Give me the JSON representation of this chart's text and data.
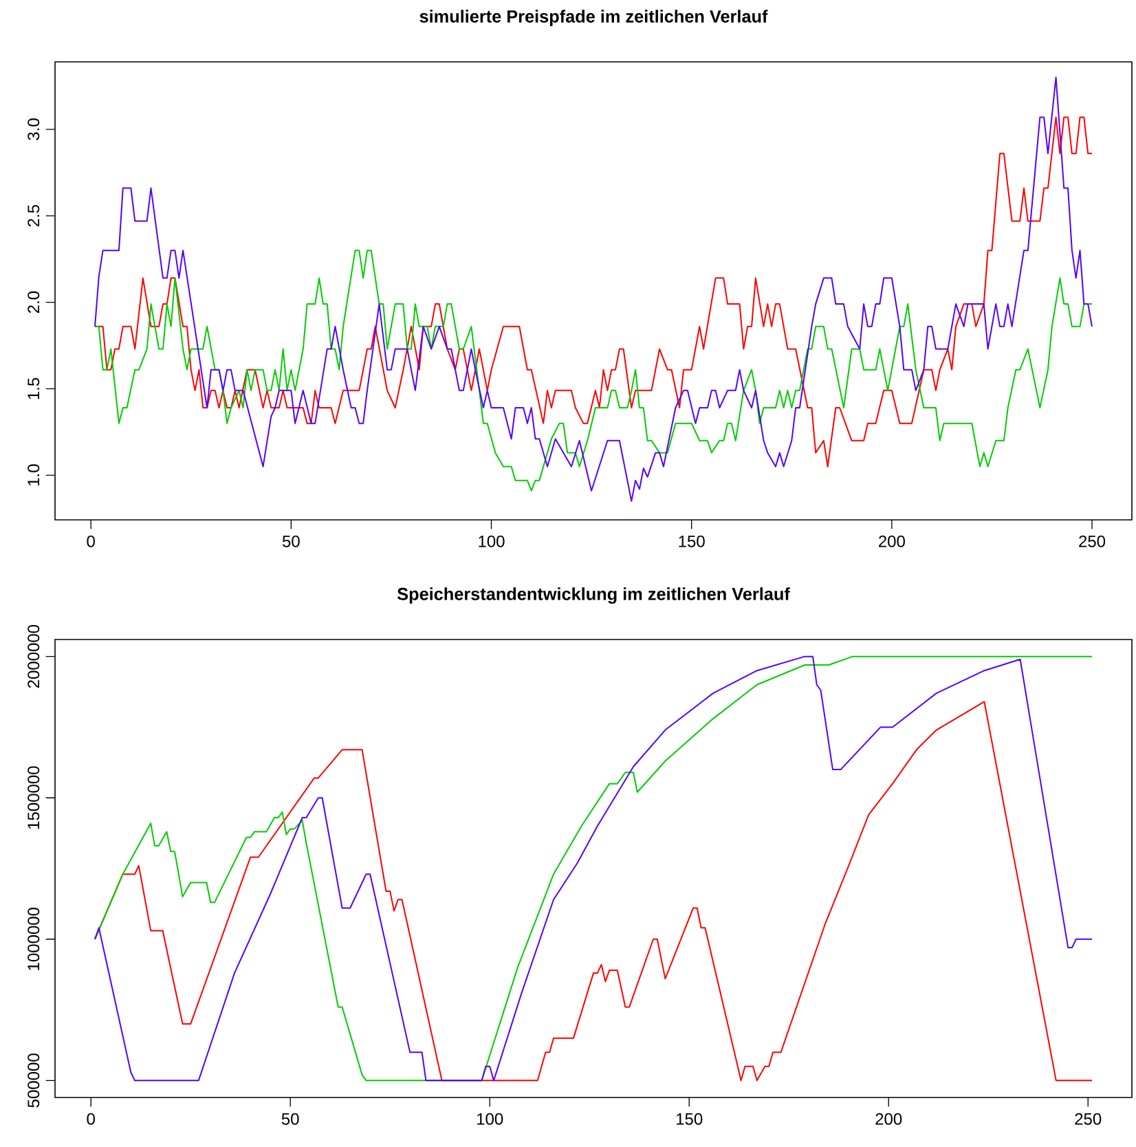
{
  "chart_data": [
    {
      "type": "line",
      "title": "simulierte Preispfade im zeitlichen Verlauf",
      "xlim": [
        -8.96,
        259.96
      ],
      "ylim": [
        0.742,
        3.39
      ],
      "xticks": [
        0,
        50,
        100,
        150,
        200,
        250
      ],
      "yticks": [
        {
          "value": 1,
          "label": "1.0"
        },
        {
          "value": 1.5,
          "label": "1.5"
        },
        {
          "value": 2,
          "label": "2.0"
        },
        {
          "value": 2.5,
          "label": "2.5"
        },
        {
          "value": 3,
          "label": "3.0"
        }
      ],
      "series": [
        {
          "color": "#ff0000",
          "x": [
            1,
            3,
            4,
            5,
            6,
            7,
            8,
            10,
            11,
            13,
            15,
            17,
            18,
            19,
            20,
            21,
            23,
            24,
            25,
            26,
            27,
            28,
            29,
            30,
            31,
            32,
            33,
            34,
            35,
            36,
            37,
            39,
            41,
            43,
            44,
            45,
            47,
            48,
            49,
            53,
            54,
            55,
            56,
            57,
            60,
            61,
            63,
            67,
            69,
            70,
            71,
            74,
            76,
            78,
            80,
            82,
            83,
            85,
            86,
            87,
            89,
            91,
            92,
            93,
            94,
            95,
            97,
            99,
            100,
            103,
            107,
            109,
            110,
            113,
            114,
            115,
            116,
            120,
            121,
            123,
            124,
            126,
            127,
            128,
            129,
            130,
            131,
            132,
            133,
            135,
            136,
            140,
            142,
            144,
            145,
            147,
            148,
            150,
            152,
            153,
            156,
            158,
            159,
            162,
            163,
            164,
            165,
            166,
            168,
            169,
            170,
            171,
            172,
            174,
            176,
            179,
            180,
            181,
            183,
            184,
            186,
            187,
            190,
            193,
            194,
            196,
            198,
            200,
            202,
            205,
            208,
            210,
            211,
            212,
            214,
            215,
            216,
            218,
            220,
            221,
            223,
            224,
            225,
            227,
            228,
            230,
            232,
            233,
            234,
            237,
            238,
            239,
            241,
            242,
            243,
            244,
            245,
            246,
            247,
            248,
            249,
            250
          ],
          "values": [
            1.86,
            1.86,
            1.61,
            1.61,
            1.73,
            1.73,
            1.86,
            1.86,
            1.73,
            2.14,
            1.86,
            1.86,
            1.99,
            1.99,
            2.14,
            2.14,
            1.86,
            1.86,
            1.61,
            1.49,
            1.61,
            1.39,
            1.39,
            1.49,
            1.49,
            1.39,
            1.49,
            1.39,
            1.39,
            1.49,
            1.39,
            1.61,
            1.61,
            1.39,
            1.49,
            1.39,
            1.39,
            1.49,
            1.39,
            1.39,
            1.3,
            1.3,
            1.49,
            1.39,
            1.39,
            1.3,
            1.49,
            1.49,
            1.73,
            1.73,
            1.86,
            1.49,
            1.39,
            1.61,
            1.86,
            1.61,
            1.86,
            1.86,
            1.99,
            1.99,
            1.73,
            1.61,
            1.73,
            1.73,
            1.61,
            1.49,
            1.73,
            1.49,
            1.61,
            1.86,
            1.86,
            1.61,
            1.61,
            1.3,
            1.49,
            1.39,
            1.49,
            1.49,
            1.39,
            1.3,
            1.3,
            1.49,
            1.39,
            1.61,
            1.49,
            1.61,
            1.61,
            1.73,
            1.73,
            1.39,
            1.49,
            1.49,
            1.73,
            1.61,
            1.61,
            1.39,
            1.61,
            1.61,
            1.86,
            1.73,
            2.14,
            2.14,
            1.99,
            1.99,
            1.73,
            1.86,
            1.86,
            2.14,
            1.86,
            1.99,
            1.86,
            1.99,
            1.99,
            1.73,
            1.73,
            1.39,
            1.39,
            1.13,
            1.2,
            1.05,
            1.39,
            1.39,
            1.2,
            1.2,
            1.3,
            1.3,
            1.49,
            1.49,
            1.3,
            1.3,
            1.61,
            1.61,
            1.49,
            1.61,
            1.73,
            1.61,
            1.86,
            1.99,
            1.99,
            1.86,
            1.99,
            2.3,
            2.3,
            2.86,
            2.86,
            2.47,
            2.47,
            2.66,
            2.47,
            2.47,
            2.66,
            2.66,
            3.07,
            2.86,
            3.07,
            3.07,
            2.86,
            2.86,
            3.07,
            3.07,
            2.86,
            2.86
          ]
        },
        {
          "color": "#00cd00",
          "x": [
            1,
            2,
            3,
            4,
            5,
            7,
            8,
            9,
            11,
            12,
            14,
            15,
            16,
            17,
            18,
            19,
            20,
            21,
            23,
            24,
            25,
            28,
            29,
            31,
            32,
            33,
            34,
            35,
            37,
            38,
            39,
            40,
            41,
            43,
            44,
            45,
            46,
            47,
            48,
            49,
            50,
            51,
            53,
            54,
            56,
            57,
            58,
            59,
            60,
            61,
            62,
            63,
            66,
            67,
            68,
            69,
            70,
            72,
            73,
            74,
            76,
            78,
            79,
            80,
            81,
            82,
            84,
            85,
            86,
            88,
            89,
            90,
            92,
            93,
            95,
            97,
            98,
            99,
            101,
            103,
            105,
            106,
            109,
            110,
            111,
            112,
            115,
            117,
            118,
            119,
            121,
            122,
            124,
            126,
            129,
            130,
            131,
            132,
            134,
            135,
            136,
            137,
            138,
            139,
            140,
            142,
            144,
            146,
            150,
            152,
            154,
            155,
            157,
            158,
            159,
            160,
            161,
            163,
            165,
            166,
            167,
            168,
            171,
            172,
            173,
            174,
            175,
            176,
            177,
            179,
            180,
            181,
            183,
            184,
            185,
            188,
            190,
            192,
            193,
            196,
            197,
            199,
            202,
            203,
            204,
            206,
            208,
            211,
            212,
            213,
            220,
            222,
            223,
            224,
            226,
            228,
            229,
            231,
            232,
            234,
            237,
            239,
            240,
            242,
            243,
            244,
            245,
            247,
            248,
            250
          ],
          "values": [
            1.86,
            1.86,
            1.61,
            1.61,
            1.73,
            1.3,
            1.39,
            1.39,
            1.61,
            1.61,
            1.73,
            1.99,
            1.86,
            1.73,
            1.73,
            1.99,
            1.86,
            2.14,
            1.73,
            1.61,
            1.73,
            1.73,
            1.86,
            1.61,
            1.61,
            1.49,
            1.3,
            1.39,
            1.49,
            1.39,
            1.61,
            1.49,
            1.61,
            1.61,
            1.49,
            1.49,
            1.61,
            1.49,
            1.73,
            1.49,
            1.61,
            1.49,
            1.73,
            1.99,
            1.99,
            2.14,
            1.99,
            1.99,
            1.73,
            1.73,
            1.61,
            1.86,
            2.3,
            2.3,
            2.14,
            2.3,
            2.3,
            1.99,
            1.99,
            1.73,
            1.99,
            1.99,
            1.73,
            1.73,
            1.99,
            1.86,
            1.86,
            1.73,
            1.86,
            1.86,
            1.99,
            1.99,
            1.73,
            1.73,
            1.86,
            1.49,
            1.3,
            1.3,
            1.13,
            1.05,
            1.05,
            0.97,
            0.97,
            0.91,
            0.97,
            0.97,
            1.21,
            1.3,
            1.3,
            1.13,
            1.13,
            1.05,
            1.2,
            1.39,
            1.39,
            1.49,
            1.49,
            1.39,
            1.39,
            1.49,
            1.61,
            1.39,
            1.39,
            1.2,
            1.2,
            1.13,
            1.13,
            1.3,
            1.3,
            1.2,
            1.2,
            1.13,
            1.2,
            1.2,
            1.3,
            1.3,
            1.2,
            1.49,
            1.61,
            1.49,
            1.3,
            1.39,
            1.39,
            1.49,
            1.39,
            1.49,
            1.39,
            1.49,
            1.49,
            1.73,
            1.73,
            1.86,
            1.86,
            1.73,
            1.73,
            1.39,
            1.73,
            1.73,
            1.61,
            1.61,
            1.73,
            1.49,
            1.86,
            1.86,
            1.99,
            1.61,
            1.39,
            1.39,
            1.2,
            1.3,
            1.3,
            1.05,
            1.13,
            1.05,
            1.2,
            1.2,
            1.39,
            1.61,
            1.61,
            1.73,
            1.39,
            1.61,
            1.86,
            2.14,
            1.99,
            1.99,
            1.86,
            1.86,
            1.99,
            1.99
          ]
        },
        {
          "color": "#5500ff",
          "x": [
            1,
            2,
            3,
            7,
            8,
            10,
            11,
            14,
            15,
            18,
            19,
            20,
            21,
            22,
            23,
            29,
            30,
            32,
            33,
            34,
            35,
            36,
            38,
            43,
            45,
            46,
            47,
            50,
            51,
            53,
            55,
            56,
            59,
            60,
            61,
            63,
            65,
            66,
            67,
            68,
            69,
            72,
            74,
            75,
            76,
            79,
            81,
            83,
            85,
            87,
            89,
            90,
            92,
            93,
            95,
            96,
            98,
            99,
            100,
            103,
            105,
            106,
            108,
            109,
            110,
            111,
            112,
            114,
            116,
            118,
            120,
            122,
            125,
            129,
            132,
            135,
            136,
            137,
            138,
            139,
            141,
            142,
            143,
            146,
            148,
            149,
            151,
            152,
            154,
            155,
            156,
            157,
            159,
            161,
            162,
            163,
            165,
            166,
            168,
            169,
            171,
            172,
            173,
            175,
            176,
            177,
            180,
            181,
            183,
            185,
            186,
            188,
            189,
            192,
            193,
            194,
            195,
            196,
            197,
            198,
            200,
            202,
            203,
            205,
            206,
            208,
            209,
            210,
            211,
            214,
            216,
            218,
            219,
            223,
            224,
            226,
            227,
            228,
            229,
            230,
            233,
            234,
            237,
            238,
            239,
            241,
            243,
            244,
            245,
            246,
            247,
            248,
            249,
            250
          ],
          "values": [
            1.86,
            2.15,
            2.3,
            2.3,
            2.66,
            2.66,
            2.47,
            2.47,
            2.66,
            2.14,
            2.14,
            2.3,
            2.3,
            2.14,
            2.3,
            1.39,
            1.61,
            1.61,
            1.49,
            1.61,
            1.61,
            1.49,
            1.49,
            1.05,
            1.34,
            1.39,
            1.49,
            1.49,
            1.3,
            1.49,
            1.3,
            1.3,
            1.73,
            1.73,
            1.86,
            1.61,
            1.39,
            1.39,
            1.3,
            1.3,
            1.49,
            1.99,
            1.61,
            1.61,
            1.73,
            1.73,
            1.49,
            1.86,
            1.73,
            1.86,
            1.73,
            1.73,
            1.49,
            1.49,
            1.73,
            1.61,
            1.39,
            1.49,
            1.39,
            1.39,
            1.21,
            1.39,
            1.39,
            1.3,
            1.39,
            1.21,
            1.21,
            1.05,
            1.21,
            1.13,
            1.05,
            1.2,
            0.91,
            1.2,
            1.2,
            0.85,
            0.97,
            0.92,
            1.04,
            0.99,
            1.13,
            1.13,
            1.05,
            1.39,
            1.49,
            1.49,
            1.3,
            1.39,
            1.39,
            1.49,
            1.49,
            1.39,
            1.49,
            1.49,
            1.61,
            1.49,
            1.39,
            1.49,
            1.2,
            1.13,
            1.05,
            1.13,
            1.05,
            1.2,
            1.39,
            1.39,
            1.86,
            1.99,
            2.14,
            2.14,
            1.99,
            1.99,
            1.86,
            1.73,
            1.99,
            1.86,
            1.86,
            1.99,
            1.99,
            2.14,
            2.14,
            1.86,
            1.61,
            1.61,
            1.49,
            1.61,
            1.86,
            1.86,
            1.73,
            1.73,
            1.99,
            1.86,
            1.99,
            1.99,
            1.73,
            1.99,
            1.86,
            1.86,
            1.99,
            1.86,
            2.3,
            2.3,
            3.07,
            3.07,
            2.86,
            3.3,
            2.66,
            2.66,
            2.3,
            2.14,
            2.3,
            1.99,
            1.99,
            1.86
          ]
        }
      ]
    },
    {
      "type": "line",
      "title": "Speicherstandentwicklung im zeitlichen Verlauf",
      "xlim": [
        -9,
        261
      ],
      "ylim": [
        440000,
        2060000
      ],
      "xticks": [
        0,
        50,
        100,
        150,
        200,
        250
      ],
      "yticks": [
        500000,
        1000000,
        1500000,
        2000000
      ],
      "series": [
        {
          "color": "#ff0000",
          "x": [
            1,
            8,
            11,
            12,
            15,
            18,
            23,
            25,
            40,
            42,
            56,
            57,
            63,
            68,
            74,
            75,
            76,
            77,
            78,
            88,
            112,
            114,
            115,
            116,
            121,
            126,
            127,
            128,
            129,
            130,
            132,
            134,
            135,
            141,
            142,
            144,
            151,
            152,
            153,
            154,
            163,
            164,
            166,
            167,
            169,
            170,
            171,
            173,
            184,
            190,
            195,
            201,
            207,
            212,
            224,
            242,
            251
          ],
          "values": [
            1000000,
            1230000,
            1230000,
            1260000,
            1030000,
            1030000,
            700000,
            700000,
            1290000,
            1290000,
            1570000,
            1570000,
            1670000,
            1670000,
            1170000,
            1170000,
            1100000,
            1140000,
            1140000,
            500000,
            500000,
            600000,
            600000,
            650000,
            650000,
            880000,
            880000,
            910000,
            850000,
            890000,
            890000,
            760000,
            760000,
            1000000,
            1000000,
            860000,
            1110000,
            1110000,
            1040000,
            1040000,
            500000,
            550000,
            550000,
            500000,
            550000,
            550000,
            600000,
            600000,
            1050000,
            1260000,
            1440000,
            1550000,
            1670000,
            1740000,
            1840000,
            500000,
            500000
          ]
        },
        {
          "color": "#00cd00",
          "x": [
            1,
            8,
            15,
            16,
            17,
            19,
            20,
            21,
            23,
            25,
            29,
            30,
            31,
            39,
            40,
            41,
            44,
            46,
            47,
            48,
            49,
            50,
            51,
            53,
            54,
            62,
            63,
            68,
            69,
            98,
            107,
            116,
            123,
            130,
            132,
            134,
            136,
            137,
            144,
            156,
            167,
            179,
            185,
            191,
            251
          ],
          "values": [
            1000000,
            1230000,
            1410000,
            1330000,
            1330000,
            1380000,
            1310000,
            1310000,
            1150000,
            1200000,
            1200000,
            1130000,
            1130000,
            1360000,
            1360000,
            1380000,
            1380000,
            1430000,
            1430000,
            1450000,
            1370000,
            1390000,
            1390000,
            1420000,
            1340000,
            760000,
            760000,
            520000,
            500000,
            500000,
            900000,
            1230000,
            1400000,
            1550000,
            1550000,
            1590000,
            1590000,
            1520000,
            1630000,
            1780000,
            1900000,
            1970000,
            1970000,
            2000000,
            2000000
          ]
        },
        {
          "color": "#5500ff",
          "x": [
            1,
            2,
            10,
            11,
            27,
            36,
            45,
            53,
            54,
            57,
            58,
            63,
            65,
            69,
            70,
            80,
            83,
            84,
            98,
            99,
            100,
            101,
            108,
            116,
            122,
            127,
            136,
            144,
            156,
            167,
            179,
            181,
            182,
            183,
            186,
            188,
            198,
            201,
            212,
            224,
            233,
            245,
            246,
            247,
            251
          ],
          "values": [
            1000000,
            1040000,
            530000,
            500000,
            500000,
            880000,
            1160000,
            1430000,
            1430000,
            1500000,
            1500000,
            1110000,
            1110000,
            1230000,
            1230000,
            600000,
            600000,
            500000,
            500000,
            550000,
            550000,
            500000,
            810000,
            1140000,
            1270000,
            1400000,
            1610000,
            1740000,
            1870000,
            1950000,
            2000000,
            2000000,
            1900000,
            1880000,
            1600000,
            1600000,
            1750000,
            1750000,
            1870000,
            1950000,
            1990000,
            970000,
            970000,
            1000000,
            1000000
          ]
        }
      ]
    }
  ]
}
